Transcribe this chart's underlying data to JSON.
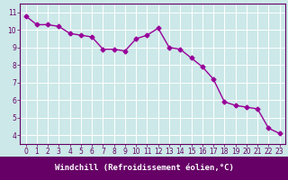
{
  "x": [
    0,
    1,
    2,
    3,
    4,
    5,
    6,
    7,
    8,
    9,
    10,
    11,
    12,
    13,
    14,
    15,
    16,
    17,
    18,
    19,
    20,
    21,
    22,
    23
  ],
  "y": [
    10.8,
    10.3,
    10.3,
    10.2,
    9.8,
    9.7,
    9.6,
    8.9,
    8.9,
    8.8,
    9.5,
    9.7,
    10.1,
    9.0,
    8.9,
    8.4,
    7.9,
    7.2,
    5.9,
    5.7,
    5.6,
    5.5,
    4.4,
    4.1
  ],
  "line_color": "#990099",
  "marker": "D",
  "marker_size": 2.5,
  "bg_color": "#cce8e8",
  "grid_color": "#ffffff",
  "xlabel": "Windchill (Refroidissement éolien,°C)",
  "xlim": [
    -0.5,
    23.5
  ],
  "ylim": [
    3.5,
    11.5
  ],
  "yticks": [
    4,
    5,
    6,
    7,
    8,
    9,
    10,
    11
  ],
  "xticks": [
    0,
    1,
    2,
    3,
    4,
    5,
    6,
    7,
    8,
    9,
    10,
    11,
    12,
    13,
    14,
    15,
    16,
    17,
    18,
    19,
    20,
    21,
    22,
    23
  ],
  "tick_fontsize": 5.5,
  "xlabel_fontsize": 6.5,
  "tick_color": "#660066",
  "xlabel_bg": "#660066",
  "xlabel_fg": "#ffffff",
  "spine_color": "#660066",
  "linewidth": 1.0
}
